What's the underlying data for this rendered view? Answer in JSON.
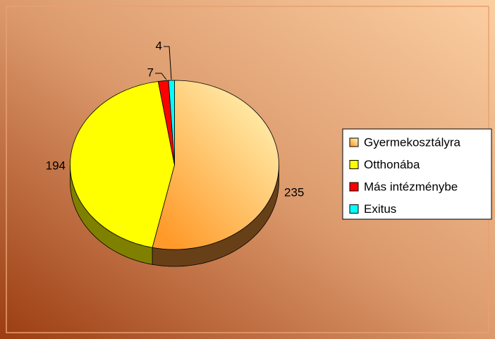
{
  "chart_data": {
    "type": "pie",
    "categories": [
      "Gyermekosztályra",
      "Otthonába",
      "Más intézménybe",
      "Exitus"
    ],
    "values": [
      235,
      194,
      7,
      4
    ],
    "colors": [
      "#ffb060",
      "#ffff00",
      "#ff0000",
      "#00ffff"
    ],
    "legend": "right"
  }
}
